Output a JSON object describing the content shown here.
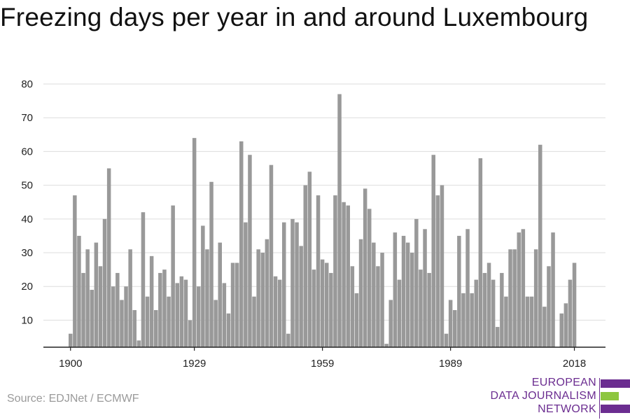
{
  "title": "Freezing days per year in and around Luxembourg",
  "source": "Source: EDJNet / ECMWF",
  "brand": {
    "lines": [
      "EUROPEAN",
      "DATA JOURNALISM",
      "NETWORK"
    ],
    "colors": {
      "purple": "#6b2d90",
      "green": "#8dc63f"
    }
  },
  "colors": {
    "bar": "#999999",
    "grid": "#dddddd",
    "axis": "#222222",
    "text": "#222222"
  },
  "chart_data": {
    "type": "bar",
    "title": "Freezing days per year in and around Luxembourg",
    "xlabel": "",
    "ylabel": "",
    "x_ticks": [
      1900,
      1929,
      1959,
      1989,
      2018
    ],
    "y_ticks": [
      10,
      20,
      30,
      40,
      50,
      60,
      70,
      80
    ],
    "ylim": [
      2,
      80
    ],
    "grid": true,
    "x": [
      1900,
      1901,
      1902,
      1903,
      1904,
      1905,
      1906,
      1907,
      1908,
      1909,
      1910,
      1911,
      1912,
      1913,
      1914,
      1915,
      1916,
      1917,
      1918,
      1919,
      1920,
      1921,
      1922,
      1923,
      1924,
      1925,
      1926,
      1927,
      1928,
      1929,
      1930,
      1931,
      1932,
      1933,
      1934,
      1935,
      1936,
      1937,
      1938,
      1939,
      1940,
      1941,
      1942,
      1943,
      1944,
      1945,
      1946,
      1947,
      1948,
      1949,
      1950,
      1951,
      1952,
      1953,
      1954,
      1955,
      1956,
      1957,
      1958,
      1959,
      1960,
      1961,
      1962,
      1963,
      1964,
      1965,
      1966,
      1967,
      1968,
      1969,
      1970,
      1971,
      1972,
      1973,
      1974,
      1975,
      1976,
      1977,
      1978,
      1979,
      1980,
      1981,
      1982,
      1983,
      1984,
      1985,
      1986,
      1987,
      1988,
      1989,
      1990,
      1991,
      1992,
      1993,
      1994,
      1995,
      1996,
      1997,
      1998,
      1999,
      2000,
      2001,
      2002,
      2003,
      2004,
      2005,
      2006,
      2007,
      2008,
      2009,
      2010,
      2011,
      2012,
      2013,
      2014,
      2015,
      2016,
      2017,
      2018
    ],
    "values": [
      6,
      47,
      35,
      24,
      31,
      19,
      33,
      26,
      40,
      55,
      20,
      24,
      16,
      20,
      31,
      13,
      4,
      42,
      17,
      29,
      13,
      24,
      25,
      17,
      44,
      21,
      23,
      22,
      10,
      64,
      20,
      38,
      31,
      51,
      16,
      33,
      21,
      12,
      27,
      27,
      63,
      39,
      59,
      17,
      31,
      30,
      34,
      56,
      23,
      22,
      39,
      6,
      40,
      39,
      32,
      50,
      54,
      25,
      47,
      28,
      27,
      24,
      47,
      77,
      45,
      44,
      26,
      18,
      34,
      49,
      43,
      33,
      26,
      30,
      3,
      16,
      36,
      22,
      35,
      33,
      30,
      40,
      25,
      37,
      24,
      59,
      47,
      50,
      6,
      16,
      13,
      35,
      18,
      37,
      18,
      22,
      58,
      24,
      27,
      22,
      8,
      24,
      17,
      31,
      31,
      36,
      37,
      17,
      17,
      31,
      62,
      14,
      26,
      36,
      2,
      12,
      15,
      22,
      27
    ]
  }
}
